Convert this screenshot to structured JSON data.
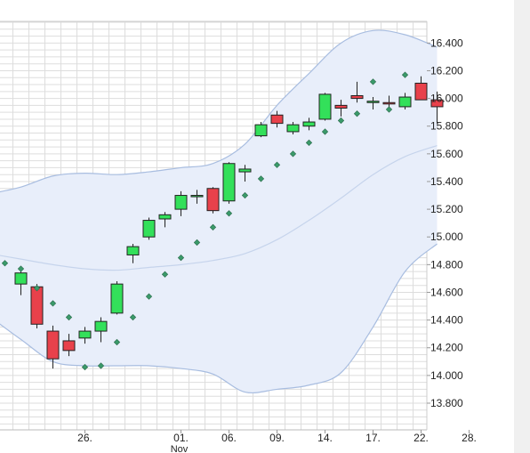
{
  "chart_data": {
    "type": "candlestick",
    "colors": {
      "up": "#33e05a",
      "down": "#e8414b",
      "sar": "#3a9a6a",
      "band_fill": "#e8eefa",
      "band_line": "#a8bde0",
      "mid_line": "#c6d4ec",
      "grid": "#dddddd"
    },
    "y_axis": {
      "range": [
        13.62,
        16.55
      ],
      "ticks": [
        "13.800",
        "14.000",
        "14.200",
        "14.400",
        "14.600",
        "14.800",
        "15.000",
        "15.200",
        "15.400",
        "15.600",
        "15.800",
        "16.000",
        "16.200",
        "16.400"
      ],
      "side": "right"
    },
    "x_axis": {
      "ticks": [
        {
          "day": 6,
          "label": "26."
        },
        {
          "day": 12,
          "label": "01.",
          "sublabel": "Nov"
        },
        {
          "day": 15,
          "label": "06."
        },
        {
          "day": 18,
          "label": "09."
        },
        {
          "day": 21,
          "label": "14."
        },
        {
          "day": 24,
          "label": "17."
        },
        {
          "day": 27,
          "label": "22."
        },
        {
          "day": 30,
          "label": "28."
        }
      ]
    },
    "grid": true,
    "candles": [
      {
        "day": 2,
        "open": 14.66,
        "high": 14.76,
        "low": 14.58,
        "close": 14.74
      },
      {
        "day": 3,
        "open": 14.64,
        "high": 14.66,
        "low": 14.34,
        "close": 14.37
      },
      {
        "day": 4,
        "open": 14.32,
        "high": 14.36,
        "low": 14.05,
        "close": 14.12
      },
      {
        "day": 5,
        "open": 14.25,
        "high": 14.3,
        "low": 14.14,
        "close": 14.18
      },
      {
        "day": 6,
        "open": 14.27,
        "high": 14.35,
        "low": 14.23,
        "close": 14.32
      },
      {
        "day": 7,
        "open": 14.32,
        "high": 14.42,
        "low": 14.24,
        "close": 14.39
      },
      {
        "day": 8,
        "open": 14.45,
        "high": 14.68,
        "low": 14.44,
        "close": 14.66
      },
      {
        "day": 9,
        "open": 14.87,
        "high": 14.95,
        "low": 14.81,
        "close": 14.93
      },
      {
        "day": 10,
        "open": 15.0,
        "high": 15.14,
        "low": 14.98,
        "close": 15.12
      },
      {
        "day": 11,
        "open": 15.13,
        "high": 15.18,
        "low": 15.07,
        "close": 15.16
      },
      {
        "day": 12,
        "open": 15.2,
        "high": 15.33,
        "low": 15.15,
        "close": 15.3
      },
      {
        "day": 13,
        "open": 15.3,
        "high": 15.34,
        "low": 15.24,
        "close": 15.3
      },
      {
        "day": 14,
        "open": 15.35,
        "high": 15.36,
        "low": 15.17,
        "close": 15.19
      },
      {
        "day": 15,
        "open": 15.26,
        "high": 15.54,
        "low": 15.24,
        "close": 15.53
      },
      {
        "day": 16,
        "open": 15.47,
        "high": 15.52,
        "low": 15.4,
        "close": 15.49
      },
      {
        "day": 17,
        "open": 15.73,
        "high": 15.83,
        "low": 15.72,
        "close": 15.81
      },
      {
        "day": 18,
        "open": 15.88,
        "high": 15.91,
        "low": 15.79,
        "close": 15.82
      },
      {
        "day": 19,
        "open": 15.76,
        "high": 15.83,
        "low": 15.74,
        "close": 15.81
      },
      {
        "day": 20,
        "open": 15.8,
        "high": 15.86,
        "low": 15.77,
        "close": 15.83
      },
      {
        "day": 21,
        "open": 15.85,
        "high": 16.04,
        "low": 15.84,
        "close": 16.03
      },
      {
        "day": 22,
        "open": 15.95,
        "high": 15.99,
        "low": 15.87,
        "close": 15.93
      },
      {
        "day": 23,
        "open": 16.02,
        "high": 16.12,
        "low": 15.97,
        "close": 16.0
      },
      {
        "day": 24,
        "open": 15.97,
        "high": 16.01,
        "low": 15.92,
        "close": 15.98
      },
      {
        "day": 25,
        "open": 15.97,
        "high": 16.02,
        "low": 15.91,
        "close": 15.96
      },
      {
        "day": 26,
        "open": 15.94,
        "high": 16.04,
        "low": 15.92,
        "close": 16.01
      },
      {
        "day": 27,
        "open": 16.11,
        "high": 16.16,
        "low": 15.99,
        "close": 15.99
      },
      {
        "day": 28,
        "open": 15.99,
        "high": 16.05,
        "low": 15.82,
        "close": 15.94
      }
    ],
    "parabolic_sar": [
      {
        "day": 0,
        "value": 14.9
      },
      {
        "day": 1,
        "value": 14.81
      },
      {
        "day": 2,
        "value": 14.77
      },
      {
        "day": 3,
        "value": 14.63
      },
      {
        "day": 4,
        "value": 14.52
      },
      {
        "day": 5,
        "value": 14.42
      },
      {
        "day": 6,
        "value": 14.06
      },
      {
        "day": 7,
        "value": 14.07
      },
      {
        "day": 8,
        "value": 14.24
      },
      {
        "day": 9,
        "value": 14.42
      },
      {
        "day": 10,
        "value": 14.57
      },
      {
        "day": 11,
        "value": 14.73
      },
      {
        "day": 12,
        "value": 14.85
      },
      {
        "day": 13,
        "value": 14.96
      },
      {
        "day": 14,
        "value": 15.07
      },
      {
        "day": 15,
        "value": 15.17
      },
      {
        "day": 16,
        "value": 15.3
      },
      {
        "day": 17,
        "value": 15.42
      },
      {
        "day": 18,
        "value": 15.52
      },
      {
        "day": 19,
        "value": 15.6
      },
      {
        "day": 20,
        "value": 15.68
      },
      {
        "day": 21,
        "value": 15.76
      },
      {
        "day": 22,
        "value": 15.84
      },
      {
        "day": 23,
        "value": 15.89
      },
      {
        "day": 24,
        "value": 16.12
      },
      {
        "day": 25,
        "value": 15.92
      },
      {
        "day": 26,
        "value": 16.17
      }
    ],
    "bollinger": {
      "days": [
        0,
        2,
        4,
        6,
        8,
        10,
        12,
        14,
        16,
        18,
        20,
        22,
        24,
        26,
        28
      ],
      "upper": [
        15.31,
        15.36,
        15.44,
        15.46,
        15.45,
        15.47,
        15.5,
        15.53,
        15.67,
        15.95,
        16.18,
        16.4,
        16.49,
        16.46,
        16.37
      ],
      "middle": [
        14.88,
        14.84,
        14.8,
        14.77,
        14.76,
        14.78,
        14.8,
        14.83,
        14.88,
        14.98,
        15.12,
        15.28,
        15.45,
        15.58,
        15.66
      ],
      "lower": [
        14.43,
        14.26,
        14.1,
        14.07,
        14.07,
        14.07,
        14.05,
        14.01,
        13.88,
        13.9,
        13.93,
        14.02,
        14.35,
        14.75,
        14.95
      ]
    }
  }
}
